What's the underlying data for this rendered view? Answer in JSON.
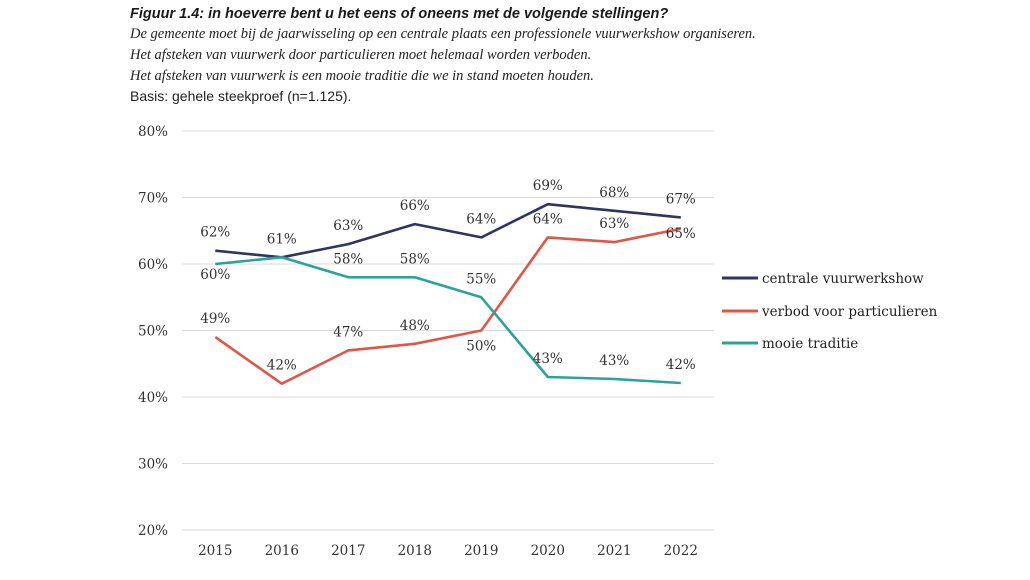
{
  "chart_data": {
    "type": "line",
    "title": "Figuur 1.4: in hoeverre bent u het eens of oneens met de volgende stellingen?",
    "statements": [
      "De gemeente moet bij de jaarwisseling op een centrale plaats een professionele vuurwerkshow organiseren.",
      "Het afsteken van vuurwerk door particulieren moet helemaal worden verboden.",
      "Het afsteken van vuurwerk is een mooie traditie die we in stand moeten houden."
    ],
    "basis": "Basis: gehele steekproef (n=1.125).",
    "x": [
      "2015",
      "2016",
      "2017",
      "2018",
      "2019",
      "2020",
      "2021",
      "2022"
    ],
    "ylim": [
      20,
      80
    ],
    "yticks": [
      20,
      30,
      40,
      50,
      60,
      70,
      80
    ],
    "ytick_labels": [
      "20%",
      "30%",
      "40%",
      "50%",
      "60%",
      "70%",
      "80%"
    ],
    "xlabel": "",
    "ylabel": "",
    "grid": true,
    "legend_position": "right",
    "series": [
      {
        "name": "centrale vuurwerkshow",
        "color": "#2f3560",
        "values": [
          62,
          61,
          63,
          66,
          64,
          69,
          68,
          67
        ],
        "labels": [
          "62%",
          "61%",
          "63%",
          "66%",
          "64%",
          "69%",
          "68%",
          "67%"
        ]
      },
      {
        "name": "verbod voor particulieren",
        "color": "#e05545",
        "values": [
          49,
          42,
          47,
          48,
          50,
          64,
          63.3,
          65.3
        ],
        "labels": [
          "49%",
          "42%",
          "47%",
          "48%",
          "50%",
          "64%",
          "63%",
          "65%"
        ]
      },
      {
        "name": "mooie traditie",
        "color": "#2aa39a",
        "values": [
          60,
          61,
          58,
          58,
          55,
          43,
          42.7,
          42.1
        ],
        "labels": [
          "60%",
          "",
          "58%",
          "58%",
          "55%",
          "43%",
          "43%",
          "42%"
        ]
      }
    ]
  }
}
